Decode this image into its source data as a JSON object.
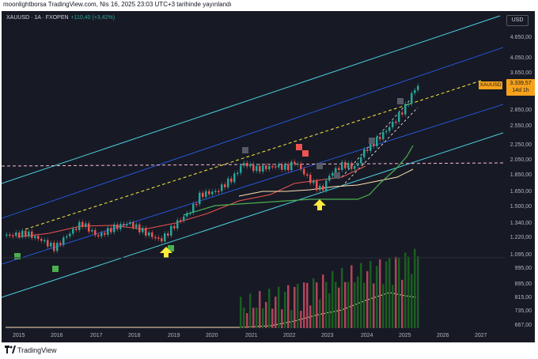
{
  "header": {
    "caption": "moonlightborsa TradingView.com, Nis 16, 2025 23:03 UTC+3 tarihinde yayınlandı"
  },
  "legend": {
    "symbol": "XAUUSD · 1A · FXOPEN",
    "change": "+110,40 (+3,42%)"
  },
  "currency_button": "USD",
  "symbol_tag": "XAUUSD",
  "price_tag": {
    "price": "3.339,57",
    "countdown": "14d 1h"
  },
  "y_axis": [
    "4.650,00",
    "4.050,00",
    "3.650,00",
    "2.850,00",
    "2.550,00",
    "2.250,00",
    "2.050,00",
    "1.850,00",
    "1.650,00",
    "1.500,00",
    "1.340,00",
    "1.220,00",
    "1.095,00",
    "995,00",
    "895,00",
    "815,00",
    "735,00",
    "667,00"
  ],
  "x_axis": [
    "2015",
    "2016",
    "2017",
    "2018",
    "2019",
    "2020",
    "2021",
    "2022",
    "2023",
    "2024",
    "2025",
    "2026",
    "2027"
  ],
  "footer": {
    "brand": "TradingView"
  },
  "colors": {
    "background": "#171a25",
    "up": "#26a69a",
    "down": "#ef5350",
    "price_tag": "#f7a21b",
    "channel_outer": "#4dd0e1",
    "channel_inner": "#2962ff",
    "ma_fast": "#ef5350",
    "ma_slow": "#ffe0b2",
    "ma_green": "#4caf50",
    "trend_dashed": "#ffeb3b",
    "horizontal_dashed": "#f8bbd0"
  }
}
